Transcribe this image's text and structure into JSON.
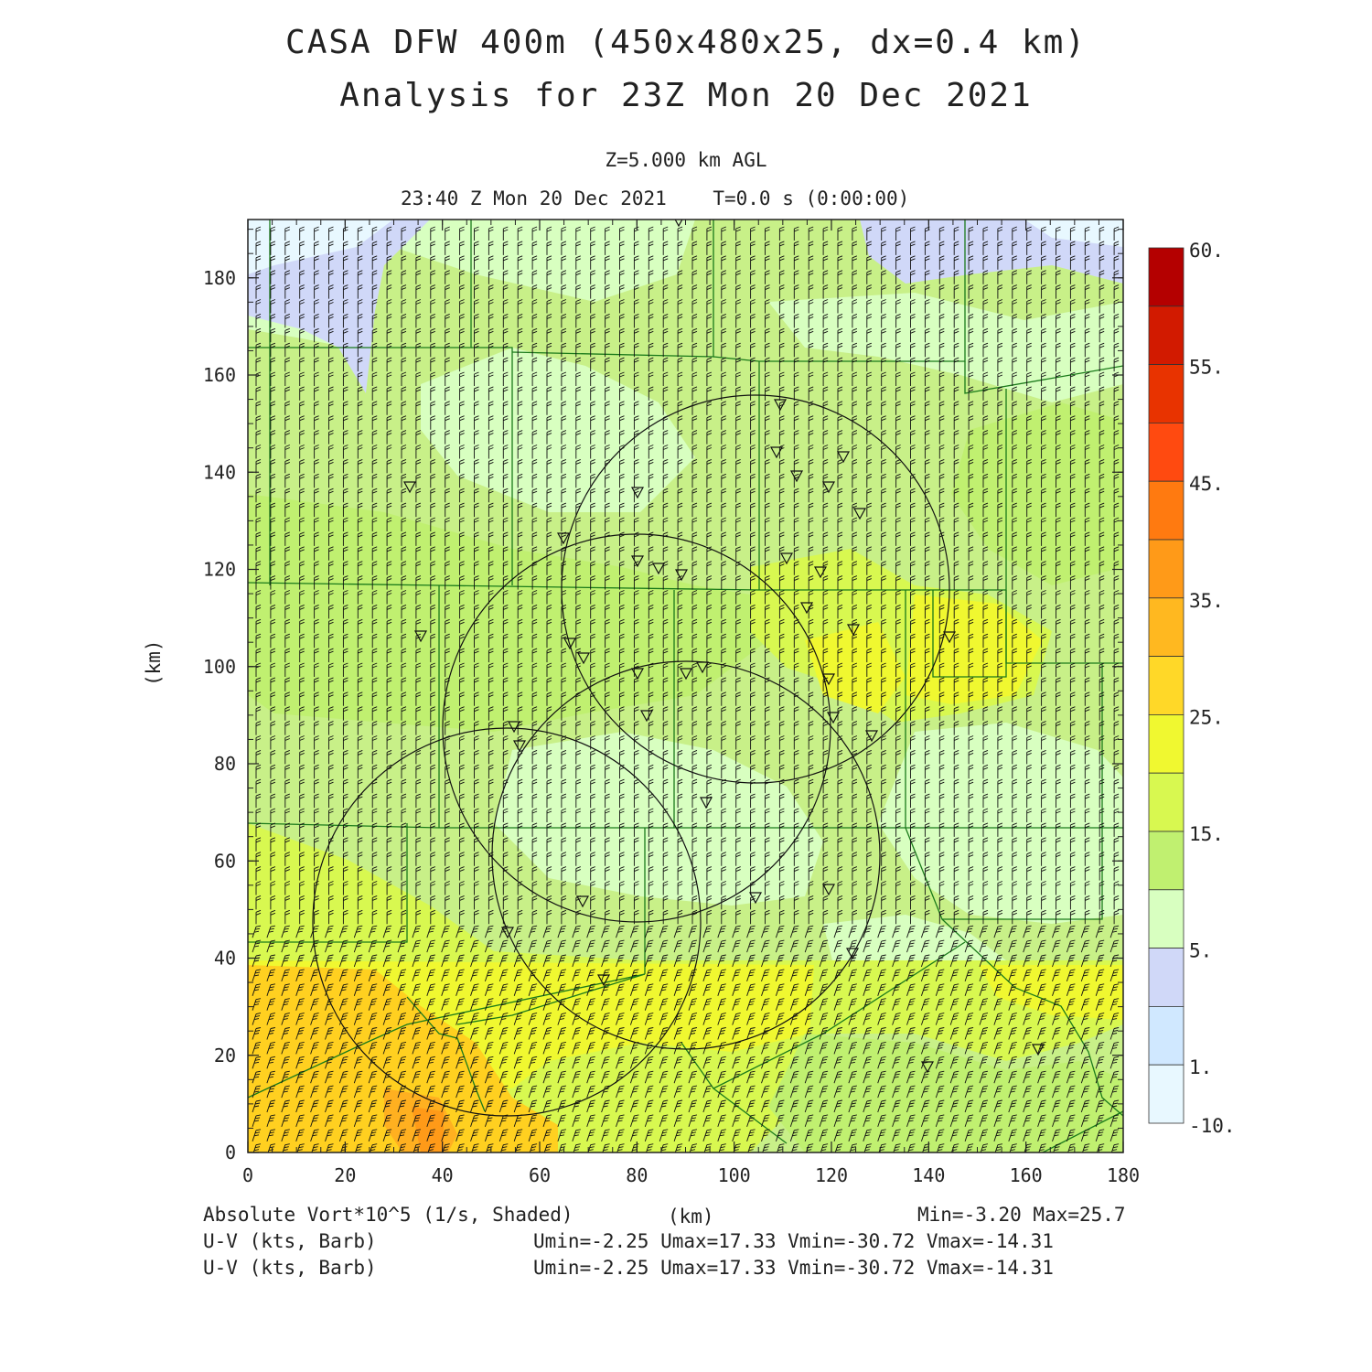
{
  "header": {
    "title_line1": "CASA DFW 400m (450x480x25, dx=0.4 km)",
    "title_line2": "Analysis for 23Z Mon 20 Dec 2021",
    "level": "Z=5.000 km AGL",
    "valid_time": "23:40 Z Mon 20 Dec 2021    T=0.0 s (0:00:00)"
  },
  "axes": {
    "x_label": "(km)",
    "y_label": "(km)",
    "x_range": [
      0,
      180
    ],
    "y_range": [
      0,
      192
    ],
    "x_ticks": [
      "0",
      "20",
      "40",
      "60",
      "80",
      "100",
      "120",
      "140",
      "160",
      "180"
    ],
    "y_ticks": [
      "0",
      "20",
      "40",
      "60",
      "80",
      "100",
      "120",
      "140",
      "160",
      "180"
    ]
  },
  "colorbar": {
    "labels": [
      "60.",
      "55.",
      "45.",
      "35.",
      "25.",
      "15.",
      "5.",
      "1.",
      "-10."
    ],
    "colors": [
      "#b40000",
      "#d21a00",
      "#e83300",
      "#ff4a10",
      "#ff7a10",
      "#ff9a18",
      "#ffb820",
      "#ffd828",
      "#f0f830",
      "#d8f850",
      "#c0f070",
      "#d8ffc0",
      "#d0d8f8",
      "#d0e8ff",
      "#e8f8ff"
    ]
  },
  "footer": {
    "field_label": "Absolute Vort*10^5 (1/s, Shaded)",
    "x_unit": "(km)",
    "minmax": "Min=-3.20 Max=25.7",
    "barb_label_1": "U-V (kts, Barb)",
    "barb_stats_1": "Umin=-2.25 Umax=17.33 Vmin=-30.72 Vmax=-14.31",
    "barb_label_2": "U-V (kts, Barb)",
    "barb_stats_2": "Umin=-2.25 Umax=17.33 Vmin=-30.72 Vmax=-14.31"
  },
  "radars": {
    "range_km": 40,
    "sites": [
      [
        53,
        48
      ],
      [
        104,
        117
      ],
      [
        80,
        87
      ],
      [
        86,
        61
      ]
    ]
  },
  "fill_colors": {
    "background": "#c8f088",
    "light_green": "#d8ffc0",
    "mid_green": "#c0f070",
    "yellow_green": "#d8f850",
    "yellow": "#f0f830",
    "orange": "#ffd020",
    "deep_orange": "#ffb020",
    "light_blue": "#d0d8f8",
    "pale_blue": "#e8f8ff",
    "boundary_line": "#1a7a1a"
  }
}
